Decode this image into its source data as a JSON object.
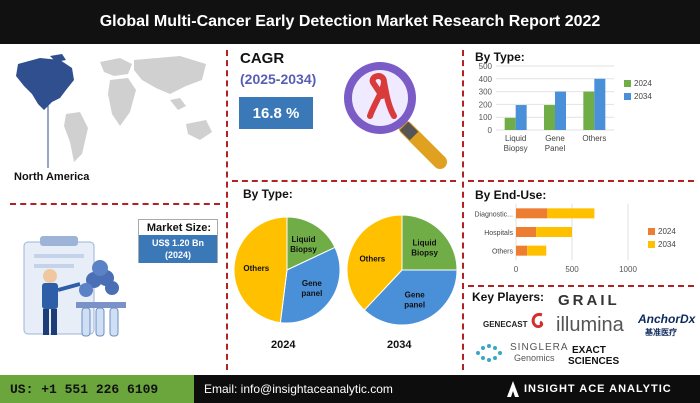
{
  "header": {
    "title": "Global Multi-Cancer Early Detection Market  Research Report 2022"
  },
  "region": {
    "label": "North America"
  },
  "cagr": {
    "title": "CAGR",
    "period": "(2025-2034)",
    "value": "16.8 %"
  },
  "market_size": {
    "title": "Market Size:",
    "value_line1": "US$ 1.20 Bn",
    "value_line2": "(2024)"
  },
  "pies": {
    "title": "By Type:",
    "year_a": "2024",
    "year_b": "2034",
    "labels": {
      "liquid": "Liquid\nBiopsy",
      "gene": "Gene\npanel",
      "others": "Others"
    }
  },
  "type_chart_title": "By Type:",
  "enduse_chart_title": "By End-Use:",
  "key_players": {
    "title": "Key Players:",
    "names": [
      "GRAIL",
      "AnchorDx",
      "基准医疗",
      "GENECAST",
      "illumina",
      "SINGLERA",
      "Genomics",
      "EXACT",
      "SCIENCES"
    ]
  },
  "footer": {
    "phone": "US: +1 551 226 6109",
    "email": "Email: info@insightaceanalytic.com",
    "brand": "INSIGHT ACE ANALYTIC"
  },
  "colors": {
    "blue": "#4a90d9",
    "green": "#70ad47",
    "orange": "#ed7d31",
    "yellow": "#ffc000",
    "accent_blue": "#3b78b8"
  },
  "chart_data": [
    {
      "type": "bar",
      "title": "By Type:",
      "categories": [
        "Liquid Biopsy",
        "Gene Panel",
        "Others"
      ],
      "series": [
        {
          "name": "2024",
          "values": [
            95,
            195,
            300
          ],
          "color": "#70ad47"
        },
        {
          "name": "2034",
          "values": [
            195,
            300,
            400
          ],
          "color": "#4a90d9"
        }
      ],
      "ylim": [
        0,
        500
      ],
      "yticks": [
        "0",
        "100",
        "200",
        "300",
        "400",
        "500"
      ],
      "legend": "right"
    },
    {
      "type": "bar",
      "orientation": "horizontal",
      "stacked": true,
      "title": "By End-Use:",
      "categories": [
        "Diagnostic...",
        "Hospitals",
        "Others"
      ],
      "series": [
        {
          "name": "2024",
          "values": [
            280,
            180,
            100
          ],
          "color": "#ed7d31"
        },
        {
          "name": "2034",
          "values": [
            420,
            320,
            170
          ],
          "color": "#ffc000"
        }
      ],
      "xlim": [
        0,
        1000
      ],
      "xticks": [
        "0",
        "500",
        "1000"
      ],
      "legend": "right"
    },
    {
      "type": "pie",
      "label": "2024",
      "slices": [
        {
          "name": "Liquid Biopsy",
          "value": 18,
          "color": "#70ad47"
        },
        {
          "name": "Gene panel",
          "value": 34,
          "color": "#4a90d9"
        },
        {
          "name": "Others",
          "value": 48,
          "color": "#ffc000"
        }
      ]
    },
    {
      "type": "pie",
      "label": "2034",
      "slices": [
        {
          "name": "Liquid Biopsy",
          "value": 25,
          "color": "#70ad47"
        },
        {
          "name": "Gene panel",
          "value": 37,
          "color": "#4a90d9"
        },
        {
          "name": "Others",
          "value": 38,
          "color": "#ffc000"
        }
      ]
    }
  ]
}
